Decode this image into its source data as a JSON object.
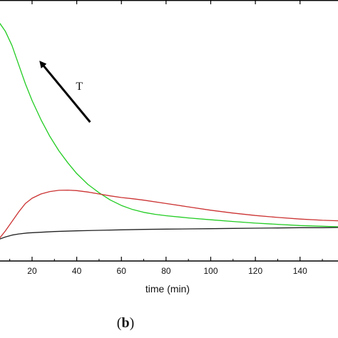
{
  "chart_data": {
    "type": "line",
    "xlabel": "time (min)",
    "ylabel": "",
    "xlim": [
      5,
      157
    ],
    "x_ticks": [
      20,
      40,
      60,
      80,
      100,
      120,
      140
    ],
    "grid": false,
    "annotation": {
      "text": "T",
      "arrow_from": [
        46,
        0.58
      ],
      "arrow_to": [
        23,
        0.84
      ]
    },
    "panel_label": {
      "open": "(",
      "letter": "b",
      "close": ")"
    },
    "series": [
      {
        "color": "#22cc22",
        "x": [
          5,
          8,
          11,
          14,
          17,
          20,
          24,
          28,
          32,
          36,
          40,
          45,
          50,
          55,
          60,
          65,
          70,
          75,
          80,
          90,
          100,
          110,
          120,
          130,
          140,
          150,
          157
        ],
        "y": [
          1.0,
          0.96,
          0.9,
          0.82,
          0.74,
          0.67,
          0.59,
          0.52,
          0.46,
          0.41,
          0.365,
          0.32,
          0.285,
          0.255,
          0.232,
          0.215,
          0.203,
          0.195,
          0.189,
          0.18,
          0.172,
          0.165,
          0.158,
          0.153,
          0.148,
          0.145,
          0.143
        ]
      },
      {
        "color": "#cc3333",
        "x": [
          5,
          8,
          11,
          14,
          17,
          20,
          24,
          28,
          32,
          36,
          40,
          45,
          50,
          55,
          60,
          65,
          70,
          80,
          90,
          100,
          110,
          120,
          130,
          140,
          150,
          157
        ],
        "y": [
          0.09,
          0.125,
          0.165,
          0.205,
          0.24,
          0.262,
          0.28,
          0.29,
          0.295,
          0.296,
          0.294,
          0.288,
          0.28,
          0.272,
          0.265,
          0.26,
          0.254,
          0.24,
          0.226,
          0.212,
          0.2,
          0.19,
          0.182,
          0.175,
          0.17,
          0.168
        ]
      },
      {
        "color": "#222222",
        "x": [
          5,
          8,
          11,
          14,
          18,
          24,
          30,
          40,
          50,
          60,
          70,
          80,
          90,
          100,
          110,
          120,
          130,
          140,
          150,
          157
        ],
        "y": [
          0.09,
          0.1,
          0.108,
          0.113,
          0.117,
          0.12,
          0.123,
          0.126,
          0.128,
          0.13,
          0.132,
          0.133,
          0.134,
          0.135,
          0.136,
          0.137,
          0.138,
          0.139,
          0.139,
          0.14
        ]
      }
    ]
  }
}
